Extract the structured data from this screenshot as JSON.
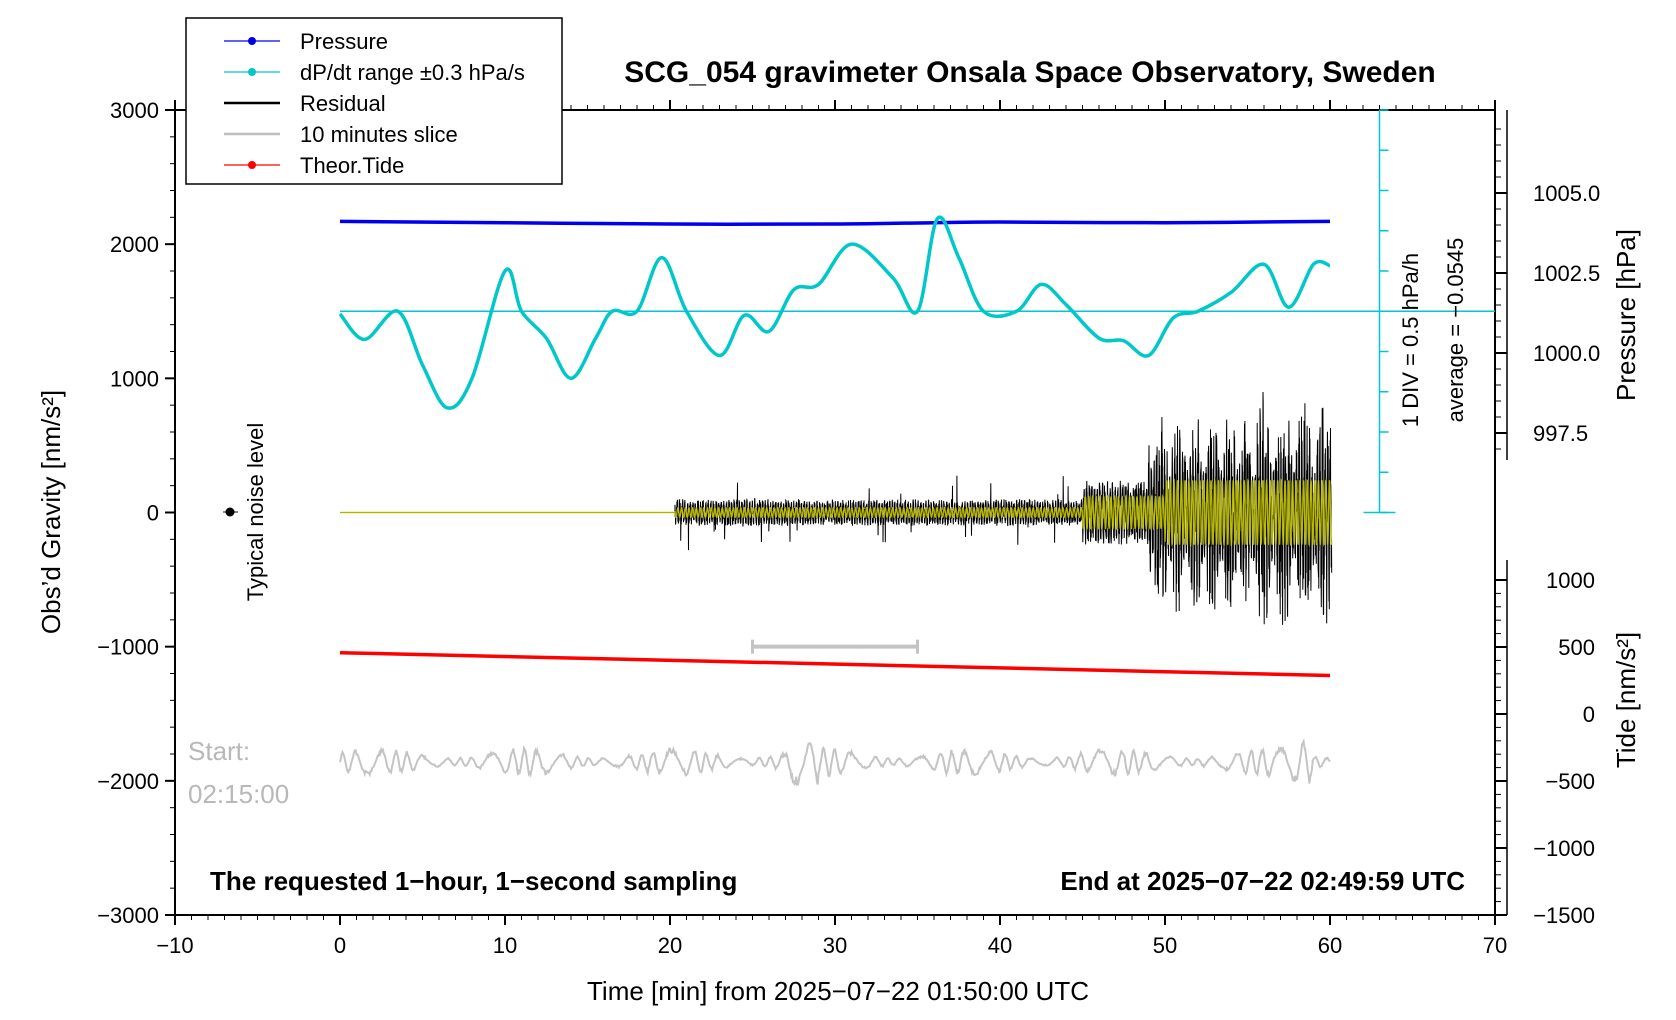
{
  "chart_data": {
    "type": "line",
    "title": "SCG_054 gravimeter Onsala Space Observatory, Sweden",
    "xlabel": "Time [min] from 2025−07−22 01:50:00 UTC",
    "ylabel_left": "Obs’d Gravity [nm/s²]",
    "ylabel_right_pressure": "Pressure [hPa]",
    "ylabel_right_tide": "Tide [nm/s²]",
    "xlim": [
      -10,
      70
    ],
    "ylim": [
      -3000,
      3000
    ],
    "x_ticks": [
      "−10",
      "0",
      "10",
      "20",
      "30",
      "40",
      "50",
      "60",
      "70"
    ],
    "y_ticks_left": [
      "3000",
      "2000",
      "1000",
      "0",
      "−1000",
      "−2000",
      "−3000"
    ],
    "pressure_ticks": [
      "1005.0",
      "1002.5",
      "1000.0",
      "997.5"
    ],
    "tide_ticks": [
      "1000",
      "500",
      "0",
      "−500",
      "−1000",
      "−1500"
    ],
    "legend": [
      {
        "label": "Pressure",
        "color": "#0000ee",
        "marker": true
      },
      {
        "label": "dP/dt range ±0.3 hPa/s",
        "color": "#00c8c8",
        "marker": true
      },
      {
        "label": "Residual",
        "color": "#000000",
        "marker": false
      },
      {
        "label": "10 minutes slice",
        "color": "#bdbdbd",
        "marker": false
      },
      {
        "label": "Theor.Tide",
        "color": "#ff0000",
        "marker": true
      }
    ],
    "annotations": {
      "noise": "Typical noise level",
      "start_label": "Start:",
      "start_time": "02:15:00",
      "caption_left": "The requested 1−hour, 1−second sampling",
      "caption_right": "End at 2025−07−22 02:49:59 UTC",
      "div": "1 DIV = 0.5 hPa/h",
      "average": "average = −0.0545"
    },
    "series": [
      {
        "name": "Pressure",
        "unit": "nm/s² (plot units)",
        "x": [
          0,
          10,
          20,
          30,
          36,
          40,
          50,
          60
        ],
        "values": [
          2170,
          2160,
          2150,
          2150,
          2160,
          2165,
          2160,
          2170
        ]
      },
      {
        "name": "dP/dt",
        "unit": "nm/s² (plot units)",
        "x": [
          0,
          1.5,
          3.5,
          5,
          6.5,
          8,
          10,
          11,
          12.5,
          14,
          15.5,
          16.5,
          18,
          19.5,
          21,
          23,
          24.5,
          26,
          27.5,
          29,
          31,
          33.5,
          35,
          36.2,
          37.5,
          39,
          41,
          42.5,
          44,
          46,
          47.5,
          49,
          50.5,
          52,
          54,
          56,
          57.5,
          59,
          60
        ],
        "values": [
          1480,
          1290,
          1500,
          1100,
          780,
          1000,
          1800,
          1500,
          1300,
          1000,
          1300,
          1500,
          1500,
          1900,
          1500,
          1170,
          1470,
          1350,
          1660,
          1700,
          2000,
          1750,
          1500,
          2190,
          1900,
          1500,
          1500,
          1700,
          1550,
          1300,
          1280,
          1170,
          1450,
          1500,
          1640,
          1850,
          1530,
          1850,
          1840
        ]
      },
      {
        "name": "Theor.Tide",
        "unit": "nm/s² (plot units)",
        "x": [
          0,
          60
        ],
        "values": [
          -1045,
          -1215
        ]
      },
      {
        "name": "10 minutes slice",
        "x_start": 25,
        "x_end": 35,
        "y": -1000
      }
    ],
    "dpdt_average_line": 1500
  }
}
